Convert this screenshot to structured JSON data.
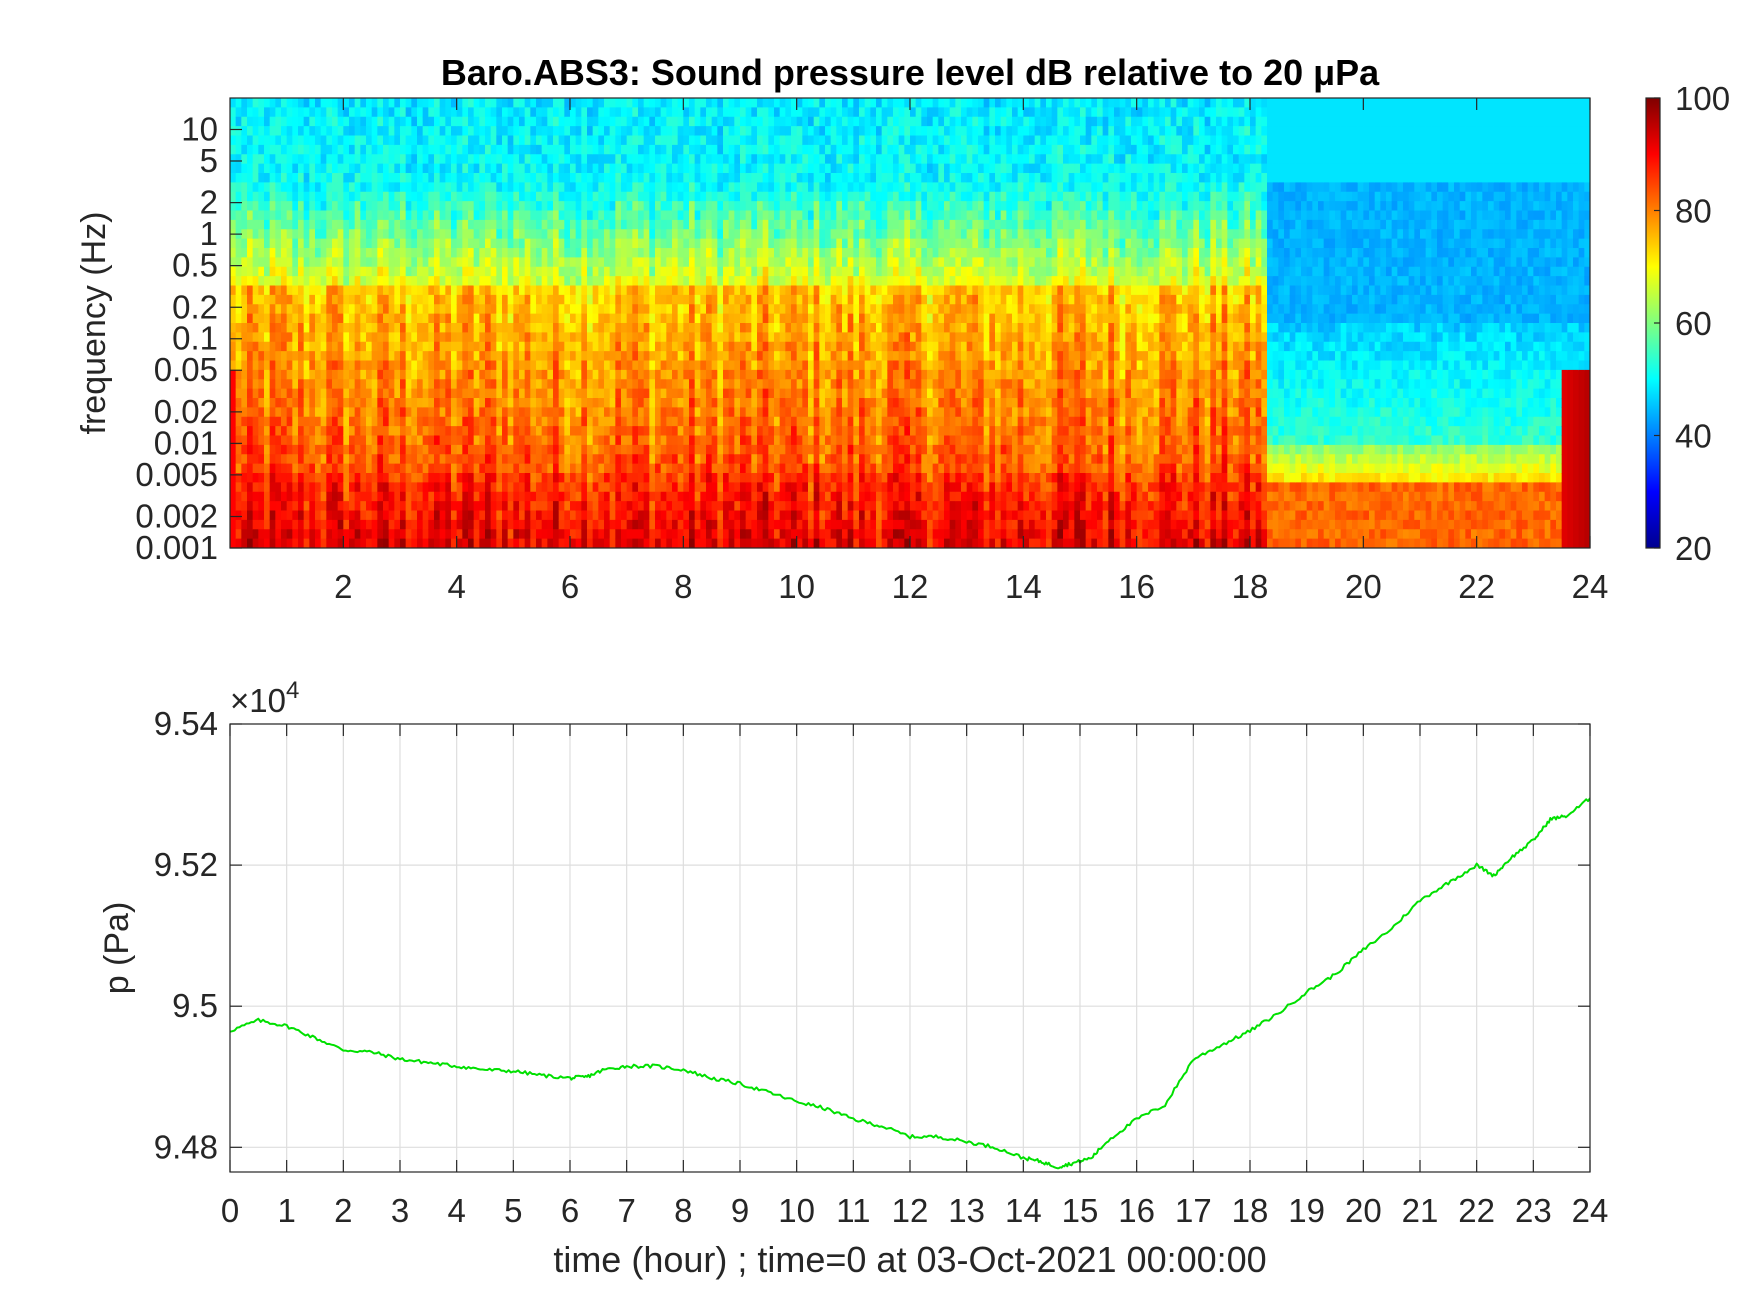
{
  "chart_data": [
    {
      "type": "heatmap",
      "title": "Baro.ABS3: Sound pressure level dB relative to 20 μPa",
      "xlabel": "",
      "ylabel": "frequency (Hz)",
      "xlim": [
        0,
        24
      ],
      "x_ticks": [
        2,
        4,
        6,
        8,
        10,
        12,
        14,
        16,
        18,
        20,
        22,
        24
      ],
      "x_tick_labels": [
        "2",
        "4",
        "6",
        "8",
        "10",
        "12",
        "14",
        "16",
        "18",
        "20",
        "22",
        "24"
      ],
      "y_scale": "log",
      "ylim": [
        0.001,
        20
      ],
      "y_ticks": [
        0.001,
        0.002,
        0.005,
        0.01,
        0.02,
        0.05,
        0.1,
        0.2,
        0.5,
        1,
        2,
        5,
        10
      ],
      "y_tick_labels": [
        "0.001",
        "0.002",
        "0.005",
        "0.01",
        "0.02",
        "0.05",
        "0.1",
        "0.2",
        "0.5",
        "1",
        "2",
        "5",
        "10"
      ],
      "colormap": "jet",
      "colorbar": {
        "range": [
          20,
          100
        ],
        "ticks": [
          20,
          40,
          60,
          80,
          100
        ],
        "tick_labels": [
          "20",
          "40",
          "60",
          "80",
          "100"
        ]
      },
      "description_regimes": [
        {
          "x_range": [
            0,
            18.3
          ],
          "low_freq_level_db": 88,
          "mid_freq_level_db": 78,
          "high_freq_level_db": 50
        },
        {
          "x_range": [
            18.3,
            24
          ],
          "low_freq_level_db": 84,
          "mid_freq_level_db": 50,
          "high_freq_level_db": 46
        }
      ]
    },
    {
      "type": "line",
      "title": "",
      "xlabel": "time (hour) ; time=0 at 03-Oct-2021 00:00:00",
      "ylabel": "p (Pa)",
      "y_exponent_label": "×10",
      "y_exponent_power": "4",
      "xlim": [
        0,
        24
      ],
      "ylim": [
        94765,
        95400
      ],
      "x_ticks": [
        0,
        1,
        2,
        3,
        4,
        5,
        6,
        7,
        8,
        9,
        10,
        11,
        12,
        13,
        14,
        15,
        16,
        17,
        18,
        19,
        20,
        21,
        22,
        23,
        24
      ],
      "x_tick_labels": [
        "0",
        "1",
        "2",
        "3",
        "4",
        "5",
        "6",
        "7",
        "8",
        "9",
        "10",
        "11",
        "12",
        "13",
        "14",
        "15",
        "16",
        "17",
        "18",
        "19",
        "20",
        "21",
        "22",
        "23",
        "24"
      ],
      "y_ticks": [
        94800,
        95000,
        95200,
        95400
      ],
      "y_tick_labels": [
        "9.48",
        "9.5",
        "9.52",
        "9.54"
      ],
      "grid": true,
      "series": [
        {
          "color": "#00e000",
          "x": [
            0,
            0.5,
            1,
            1.5,
            2,
            2.5,
            3,
            3.5,
            4,
            4.5,
            5,
            5.5,
            6,
            6.3,
            6.6,
            7,
            7.5,
            8,
            8.5,
            9,
            9.5,
            10,
            10.5,
            11,
            11.5,
            12,
            12.5,
            13,
            13.5,
            14,
            14.3,
            14.6,
            14.9,
            15.2,
            15.5,
            16,
            16.5,
            17,
            17.5,
            18,
            18.5,
            19,
            19.5,
            20,
            20.5,
            21,
            21.5,
            22,
            22.3,
            22.6,
            23,
            23.3,
            23.6,
            24
          ],
          "y": [
            94965,
            94980,
            94972,
            94955,
            94938,
            94935,
            94925,
            94920,
            94915,
            94910,
            94908,
            94902,
            94898,
            94900,
            94910,
            94915,
            94915,
            94910,
            94898,
            94890,
            94878,
            94865,
            94855,
            94840,
            94830,
            94815,
            94815,
            94808,
            94800,
            94785,
            94780,
            94772,
            94778,
            94785,
            94810,
            94840,
            94860,
            94925,
            94945,
            94965,
            94990,
            95020,
            95045,
            95080,
            95110,
            95150,
            95175,
            95200,
            95185,
            95210,
            95235,
            95265,
            95270,
            95295
          ]
        }
      ]
    }
  ]
}
